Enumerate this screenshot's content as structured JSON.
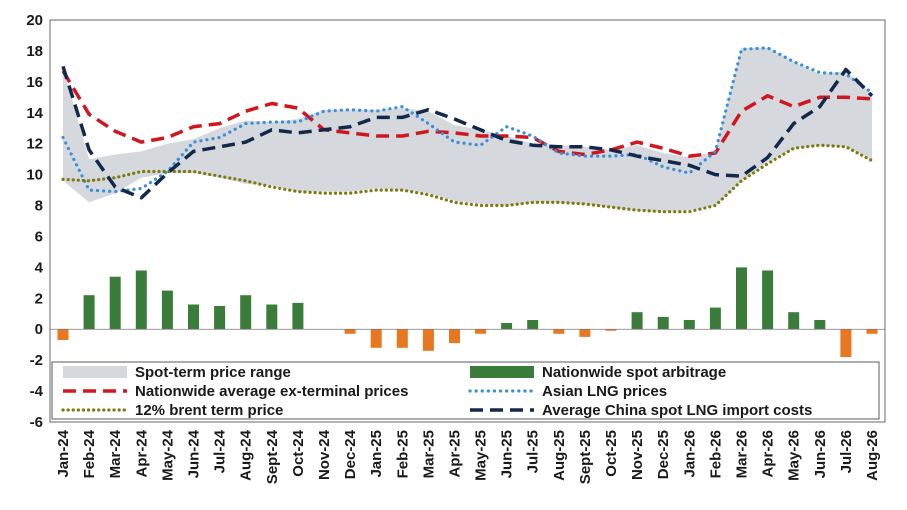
{
  "chart_data": {
    "type": "line",
    "categories": [
      "Jan-24",
      "Feb-24",
      "Mar-24",
      "Apr-24",
      "May-24",
      "Jun-24",
      "Jul-24",
      "Aug-24",
      "Sept-24",
      "Oct-24",
      "Nov-24",
      "Dec-24",
      "Jan-25",
      "Feb-25",
      "Mar-25",
      "Apr-25",
      "May-25",
      "Jun-25",
      "Jul-25",
      "Aug-25",
      "Sept-25",
      "Oct-25",
      "Nov-25",
      "Dec-25",
      "Jan-26",
      "Feb-26",
      "Mar-26",
      "Apr-26",
      "May-26",
      "Jun-26",
      "Jul-26",
      "Aug-26"
    ],
    "ylim": [
      -6,
      20
    ],
    "yticks": [
      20,
      18,
      16,
      14,
      12,
      10,
      8,
      6,
      4,
      2,
      0,
      -2,
      -4,
      -6
    ],
    "series": [
      {
        "name": "Spot-term price range",
        "kind": "band",
        "low": [
          9.6,
          8.2,
          8.8,
          9.8,
          10.1,
          10.1,
          9.8,
          9.4,
          9.3,
          8.9,
          8.9,
          8.9,
          9.1,
          9.0,
          8.8,
          8.3,
          8.1,
          8.0,
          8.2,
          8.2,
          8.1,
          7.9,
          7.7,
          7.6,
          7.7,
          8.0,
          9.6,
          10.8,
          11.7,
          11.9,
          11.8,
          11.0
        ],
        "high": [
          16.9,
          11.0,
          11.3,
          11.5,
          12.0,
          12.3,
          13.0,
          13.5,
          13.4,
          13.6,
          14.2,
          14.2,
          14.2,
          14.3,
          14.1,
          13.2,
          12.9,
          12.5,
          12.0,
          11.9,
          11.8,
          11.6,
          11.9,
          11.4,
          11.1,
          11.5,
          18.2,
          18.2,
          17.3,
          16.5,
          16.7,
          15.2
        ]
      },
      {
        "name": "Nationwide spot arbitrage",
        "kind": "bar",
        "pos_color": "#3a7d3a",
        "neg_color": "#e87722",
        "values": [
          -0.7,
          2.2,
          3.4,
          3.8,
          2.5,
          1.6,
          1.5,
          2.2,
          1.6,
          1.7,
          0.0,
          -0.3,
          -1.2,
          -1.2,
          -1.4,
          -0.9,
          -0.3,
          0.4,
          0.6,
          -0.3,
          -0.5,
          -0.1,
          1.1,
          0.8,
          0.6,
          1.4,
          4.0,
          3.8,
          1.1,
          0.6,
          -1.8,
          -0.3
        ]
      },
      {
        "name": "Nationwide average ex-terminal prices",
        "kind": "line",
        "color": "#d0161e",
        "style": "dashed",
        "values": [
          16.7,
          13.9,
          12.8,
          12.1,
          12.4,
          13.1,
          13.3,
          14.1,
          14.6,
          14.3,
          12.9,
          12.7,
          12.5,
          12.5,
          12.8,
          12.7,
          12.5,
          12.5,
          12.4,
          11.5,
          11.3,
          11.6,
          12.1,
          11.7,
          11.2,
          11.4,
          14.1,
          15.1,
          14.4,
          15.0,
          15.0,
          14.9
        ]
      },
      {
        "name": "Asian LNG prices",
        "kind": "line",
        "color": "#3a8fd8",
        "style": "dotted",
        "values": [
          12.4,
          9.0,
          8.9,
          9.1,
          10.2,
          12.1,
          12.4,
          13.3,
          13.4,
          13.4,
          14.1,
          14.2,
          14.1,
          14.4,
          13.3,
          12.1,
          11.9,
          13.1,
          12.5,
          11.4,
          11.2,
          11.2,
          11.3,
          10.5,
          10.1,
          11.5,
          18.1,
          18.2,
          17.3,
          16.6,
          16.5,
          15.3
        ]
      },
      {
        "name": "12% brent term price",
        "kind": "line",
        "color": "#7f7a10",
        "style": "dotted",
        "values": [
          9.7,
          9.6,
          9.8,
          10.2,
          10.2,
          10.2,
          9.9,
          9.6,
          9.2,
          8.9,
          8.8,
          8.8,
          9.0,
          9.0,
          8.7,
          8.2,
          8.0,
          8.0,
          8.2,
          8.2,
          8.1,
          7.9,
          7.7,
          7.6,
          7.6,
          8.0,
          9.6,
          10.7,
          11.7,
          11.9,
          11.8,
          10.9
        ]
      },
      {
        "name": "Average China spot LNG import costs",
        "kind": "line",
        "color": "#13294b",
        "style": "dashed",
        "values": [
          17.0,
          11.6,
          9.2,
          8.5,
          10.1,
          11.5,
          11.8,
          12.1,
          12.9,
          12.7,
          12.9,
          13.1,
          13.7,
          13.7,
          14.2,
          13.6,
          12.9,
          12.2,
          11.9,
          11.8,
          11.8,
          11.6,
          11.2,
          10.9,
          10.6,
          10.0,
          9.9,
          11.1,
          13.3,
          14.4,
          16.8,
          15.1
        ]
      }
    ],
    "legend": [
      [
        "Spot-term price range",
        "Nationwide spot arbitrage"
      ],
      [
        "Nationwide average ex-terminal prices",
        "Asian LNG prices"
      ],
      [
        "12% brent term price",
        "Average China spot LNG import costs"
      ]
    ],
    "band_color": "#d5d8dc",
    "grid": false
  }
}
